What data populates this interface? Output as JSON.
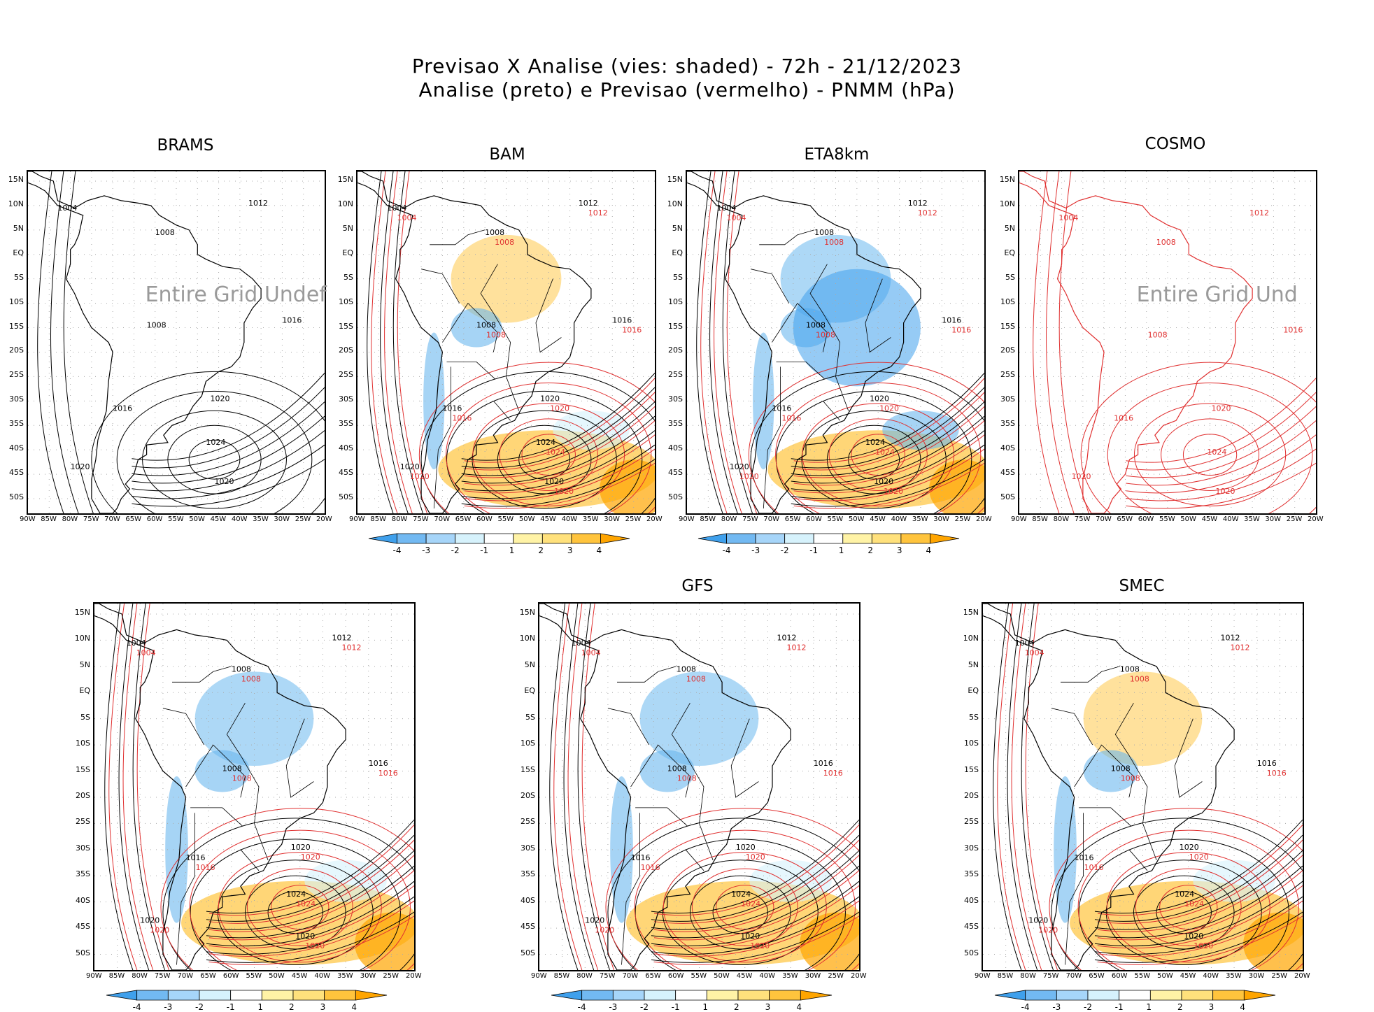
{
  "header": {
    "line1": "Previsao X Analise (vies: shaded) - 72h - 21/12/2023",
    "line2": "Analise (preto) e Previsao (vermelho) - PNMM (hPa)"
  },
  "axes": {
    "lat_labels": [
      "15N",
      "10N",
      "5N",
      "EQ",
      "5S",
      "10S",
      "15S",
      "20S",
      "25S",
      "30S",
      "35S",
      "40S",
      "45S",
      "50S"
    ],
    "lon_labels": [
      "90W",
      "85W",
      "80W",
      "75W",
      "70W",
      "65W",
      "60W",
      "55W",
      "50W",
      "45W",
      "40W",
      "35W",
      "30W",
      "25W",
      "20W"
    ]
  },
  "panels": [
    {
      "id": "brams",
      "title": "BRAMS",
      "message": "Entire Grid Undef",
      "shaded": false,
      "colorbar": false
    },
    {
      "id": "bam",
      "title": "BAM",
      "shaded": true,
      "colorbar": true
    },
    {
      "id": "eta8km",
      "title": "ETA8km",
      "shaded": true,
      "colorbar": true
    },
    {
      "id": "cosmo",
      "title": "COSMO",
      "message": "Entire Grid Und",
      "shaded": false,
      "colorbar": false
    },
    {
      "id": "unnamed",
      "title": "",
      "shaded": true,
      "colorbar": true
    },
    {
      "id": "gfs",
      "title": "GFS",
      "shaded": true,
      "colorbar": true
    },
    {
      "id": "smec",
      "title": "SMEC",
      "shaded": true,
      "colorbar": true
    }
  ],
  "colorbar": {
    "labels": [
      "-4",
      "-3",
      "-2",
      "-1",
      "1",
      "2",
      "3",
      "4"
    ],
    "colors": [
      "#3fa0ec",
      "#72b9f2",
      "#a6d5f9",
      "#d6f2fc",
      "#ffffff",
      "#fff3a6",
      "#ffe17c",
      "#ffc43d",
      "#ffa500"
    ]
  },
  "isobar_labels": [
    "1004",
    "1008",
    "1012",
    "1016",
    "1020",
    "1024"
  ],
  "colors": {
    "analysis": "#000000",
    "forecast": "#e03030",
    "positive_bias": "#ffc84a",
    "negative_bias": "#6ab8ee"
  }
}
